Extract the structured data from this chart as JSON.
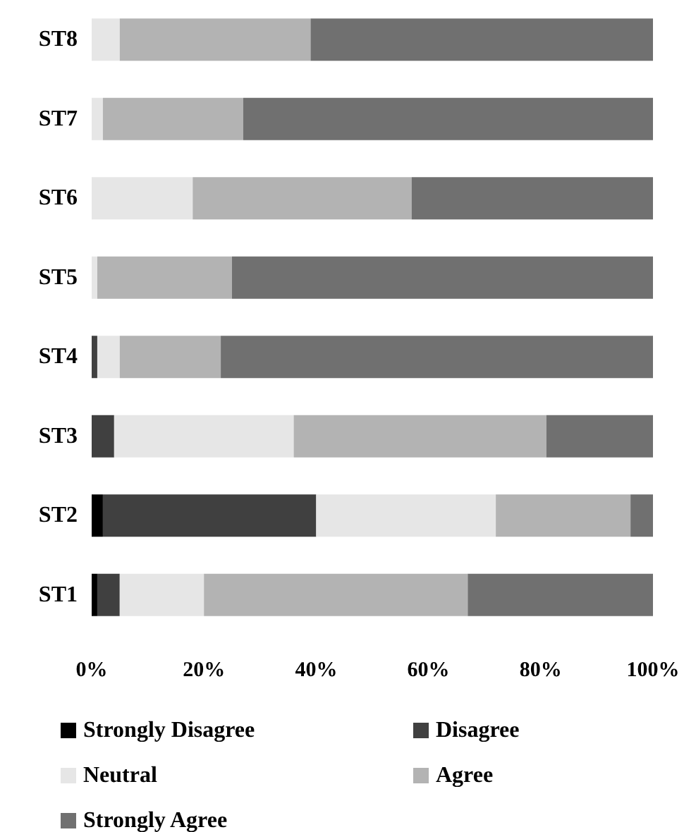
{
  "chart_data": {
    "type": "bar",
    "orientation": "horizontal",
    "stacked": true,
    "categories": [
      "ST8",
      "ST7",
      "ST6",
      "ST5",
      "ST4",
      "ST3",
      "ST2",
      "ST1"
    ],
    "series": [
      {
        "name": "Strongly Disagree",
        "color": "#000000",
        "values": [
          0,
          0,
          0,
          0,
          0,
          0,
          2,
          1
        ]
      },
      {
        "name": "Disagree",
        "color": "#404040",
        "values": [
          0,
          0,
          0,
          0,
          1,
          4,
          38,
          4
        ]
      },
      {
        "name": "Neutral",
        "color": "#e6e6e6",
        "values": [
          5,
          2,
          18,
          1,
          4,
          32,
          32,
          15
        ]
      },
      {
        "name": "Agree",
        "color": "#b3b3b3",
        "values": [
          34,
          25,
          39,
          24,
          18,
          45,
          24,
          47
        ]
      },
      {
        "name": "Strongly Agree",
        "color": "#707070",
        "values": [
          61,
          73,
          43,
          75,
          77,
          19,
          4,
          33
        ]
      }
    ],
    "xlim": [
      0,
      100
    ],
    "xticks": [
      {
        "value": 0,
        "label": "0%"
      },
      {
        "value": 20,
        "label": "20%"
      },
      {
        "value": 40,
        "label": "40%"
      },
      {
        "value": 60,
        "label": "60%"
      },
      {
        "value": 80,
        "label": "80%"
      },
      {
        "value": 100,
        "label": "100%"
      }
    ],
    "grid": false,
    "legend": "bottom"
  }
}
